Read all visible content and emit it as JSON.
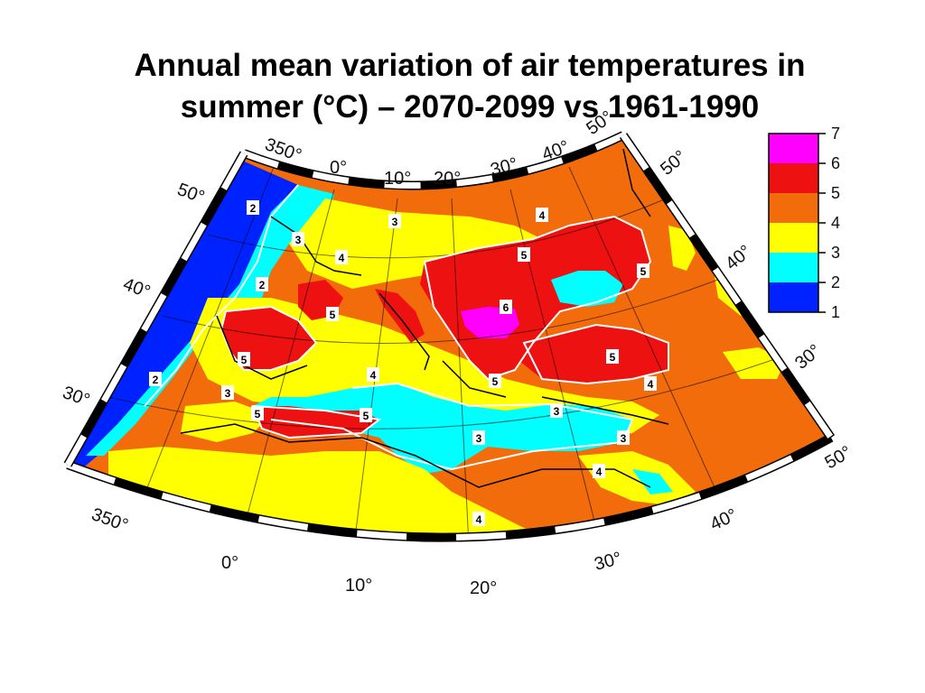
{
  "title_line1": "Annual mean variation of air temperatures in",
  "title_line2": "summer (°C) – 2070-2099 vs 1961-1990",
  "map": {
    "projection": "conic",
    "frame": "alternating black-white border",
    "top_lon_labels": [
      "350°",
      "0°",
      "10°",
      "20°",
      "30°",
      "40°",
      "50°"
    ],
    "bottom_lon_labels": [
      "350°",
      "0°",
      "10°",
      "20°",
      "30°",
      "40°",
      "50°"
    ],
    "left_lat_labels": [
      "50°",
      "40°",
      "30°"
    ],
    "right_lat_labels": [
      "50°",
      "40°",
      "30°"
    ],
    "contour_labels": [
      "2",
      "3",
      "4",
      "5",
      "6",
      "5",
      "4",
      "3",
      "2",
      "4",
      "5",
      "5",
      "5",
      "5",
      "6",
      "5",
      "5",
      "4",
      "4",
      "5",
      "3",
      "3",
      "4",
      "5",
      "5",
      "4",
      "3",
      "3",
      "4",
      "4",
      "5",
      "4",
      "2",
      "3",
      "2",
      "4",
      "5",
      "3",
      "5",
      "4",
      "3",
      "4",
      "3",
      "4",
      "2",
      "5"
    ]
  },
  "colorbar": {
    "labels": [
      "7",
      "6",
      "5",
      "4",
      "3",
      "2",
      "1"
    ],
    "colors": [
      "#ff00ff",
      "#ee1111",
      "#f26c0c",
      "#ffff00",
      "#00ffff",
      "#0022ff"
    ]
  },
  "colors": {
    "ocean_cold": "#0022ff",
    "c2_3": "#00ffff",
    "c3_4": "#ffff00",
    "c4_5": "#f26c0c",
    "c5_6": "#ee1111",
    "c6_7": "#ff00ff"
  }
}
